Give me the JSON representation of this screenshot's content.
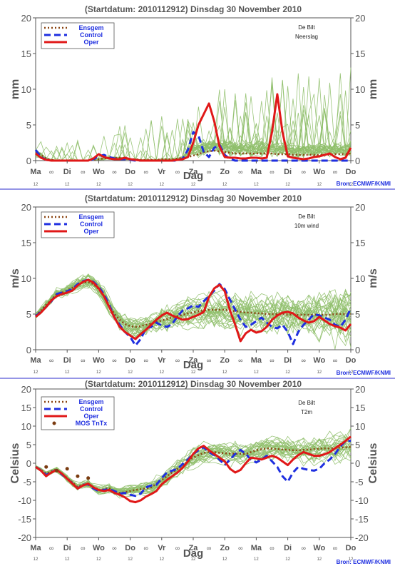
{
  "colors": {
    "ensgem": "#8b4513",
    "control": "#1f2fe0",
    "oper": "#e01818",
    "members": "#8fbf6a",
    "mos": "#7a3b10",
    "axis": "#555555",
    "title": "#555555",
    "separator": "#2b2bcc",
    "source": "#1f2fe0"
  },
  "chart_data": [
    {
      "type": "line",
      "title": "(Startdatum: 2010112912)   Dinsdag   30 November  2010",
      "location": "De Bilt",
      "variable": "Neerslag",
      "ylabel": "mm",
      "xlabel": "Dag",
      "ylim": [
        0,
        20
      ],
      "yticks": [
        0,
        5,
        10,
        15,
        20
      ],
      "xlim": [
        0,
        15
      ],
      "day_labels": [
        "Ma",
        "Di",
        "Wo",
        "Do",
        "Vr",
        "Za",
        "Zo",
        "Ma",
        "Di",
        "Wo",
        "Do"
      ],
      "hour_label": "12",
      "midnight_symbol": "∞",
      "legend": [
        "Ensgem",
        "Control",
        "Oper"
      ],
      "source": "Bron: ECMWF/KNMI",
      "x": [
        0,
        0.25,
        0.5,
        0.75,
        1,
        1.25,
        1.5,
        1.75,
        2,
        2.25,
        2.5,
        2.75,
        3,
        3.25,
        3.5,
        3.75,
        4,
        4.25,
        4.5,
        4.75,
        5,
        5.25,
        5.5,
        5.75,
        6,
        6.25,
        6.5,
        6.75,
        7,
        7.25,
        7.5,
        7.75,
        8,
        8.25,
        8.5,
        8.75,
        9,
        9.25,
        9.5,
        9.75,
        10,
        10.25,
        10.5,
        10.75,
        11,
        11.25,
        11.5,
        11.75,
        12,
        12.25,
        12.5,
        12.75,
        13,
        13.25,
        13.5,
        13.75,
        14,
        14.25,
        14.5,
        14.75,
        15
      ],
      "series": [
        {
          "name": "Ensgem",
          "style": "dotted",
          "values": [
            1.2,
            0.8,
            0.3,
            0.1,
            0,
            0,
            0,
            0,
            0,
            0,
            0,
            0.1,
            0.2,
            0.3,
            0.4,
            0.4,
            0.4,
            0.3,
            0.2,
            0.2,
            0.1,
            0.1,
            0.1,
            0.1,
            0.2,
            0.2,
            0.2,
            0.3,
            0.4,
            0.5,
            0.7,
            0.9,
            1.2,
            1.3,
            1.4,
            1.3,
            1.2,
            1.1,
            1,
            1,
            1,
            1,
            1,
            1,
            1,
            1,
            0.9,
            0.9,
            0.9,
            0.8,
            0.8,
            0.8,
            0.8,
            0.8,
            0.8,
            0.8,
            0.8,
            0.9,
            0.9,
            0.9,
            1
          ]
        },
        {
          "name": "Control",
          "style": "dashed",
          "values": [
            1.5,
            0.5,
            0.1,
            0,
            0,
            0,
            0,
            0,
            0,
            0,
            0,
            0.2,
            0.6,
            0.8,
            0.5,
            0.3,
            0.2,
            0.2,
            0.1,
            0,
            0,
            0,
            0,
            0,
            0,
            0,
            0,
            0,
            0.3,
            1.5,
            4,
            3.5,
            1.2,
            0.5,
            1.8,
            2.2,
            0.8,
            0.2,
            0,
            0,
            0,
            0,
            0,
            0,
            0,
            0,
            0,
            0,
            0,
            0,
            0,
            0,
            0,
            0,
            0,
            0,
            0,
            0,
            0,
            0,
            0
          ]
        },
        {
          "name": "Oper",
          "style": "solid",
          "values": [
            1,
            0.4,
            0.1,
            0,
            0,
            0,
            0,
            0,
            0,
            0,
            0,
            0.3,
            0.9,
            0.5,
            0.3,
            0.2,
            0.2,
            0.4,
            0.2,
            0.1,
            0,
            0,
            0,
            0,
            0,
            0,
            0,
            0.1,
            0.2,
            0.5,
            2.5,
            5,
            6.5,
            8,
            5.5,
            2,
            0.5,
            0.4,
            0.4,
            0.3,
            0.3,
            0.4,
            0.4,
            0.3,
            0.4,
            4,
            9.3,
            4,
            0.6,
            0.4,
            0.3,
            0.2,
            0.3,
            0.5,
            0.6,
            0.8,
            1,
            0.5,
            0.2,
            0.4,
            1.8
          ]
        }
      ]
    },
    {
      "type": "line",
      "title": "(Startdatum: 2010112912)   Dinsdag   30 November  2010",
      "location": "De Bilt",
      "variable": "10m wind",
      "ylabel": "m/s",
      "xlabel": "Dag",
      "ylim": [
        0,
        20
      ],
      "yticks": [
        0,
        5,
        10,
        15,
        20
      ],
      "xlim": [
        0,
        15
      ],
      "day_labels": [
        "Ma",
        "Di",
        "Wo",
        "Do",
        "Vr",
        "Za",
        "Zo",
        "Ma",
        "Di",
        "Wo",
        "Do"
      ],
      "hour_label": "12",
      "midnight_symbol": "∞",
      "legend": [
        "Ensgem",
        "Control",
        "Oper"
      ],
      "source": "Bron: ECMWF/KNMI",
      "x": [
        0,
        0.25,
        0.5,
        0.75,
        1,
        1.25,
        1.5,
        1.75,
        2,
        2.25,
        2.5,
        2.75,
        3,
        3.25,
        3.5,
        3.75,
        4,
        4.25,
        4.5,
        4.75,
        5,
        5.25,
        5.5,
        5.75,
        6,
        6.25,
        6.5,
        6.75,
        7,
        7.25,
        7.5,
        7.75,
        8,
        8.25,
        8.5,
        8.75,
        9,
        9.25,
        9.5,
        9.75,
        10,
        10.25,
        10.5,
        10.75,
        11,
        11.25,
        11.5,
        11.75,
        12,
        12.25,
        12.5,
        12.75,
        13,
        13.25,
        13.5,
        13.75,
        14,
        14.25,
        14.5,
        14.75,
        15
      ],
      "series": [
        {
          "name": "Ensgem",
          "style": "dotted",
          "values": [
            4.8,
            5.5,
            6.3,
            7,
            7.8,
            8,
            8.3,
            8.7,
            9.1,
            9.4,
            9.5,
            9.2,
            8.5,
            7.5,
            6.2,
            5,
            4.2,
            3.6,
            3.3,
            3.2,
            3.3,
            3.5,
            3.7,
            3.9,
            4.1,
            4.3,
            4.5,
            4.7,
            4.9,
            5.1,
            5.2,
            5.4,
            5.5,
            5.6,
            5.6,
            5.6,
            5.6,
            5.5,
            5.4,
            5.3,
            5.2,
            5.2,
            5.1,
            5.1,
            5,
            5,
            5,
            5,
            4.9,
            4.9,
            4.9,
            4.9,
            4.9,
            4.9,
            4.9,
            4.9,
            4.9,
            5,
            5,
            5,
            5
          ]
        },
        {
          "name": "Control",
          "style": "dashed",
          "values": [
            4.7,
            5.3,
            6,
            6.8,
            7.8,
            8,
            8.2,
            8.5,
            9.2,
            9.6,
            9.8,
            9.5,
            8.8,
            7.8,
            6.3,
            4.5,
            3.5,
            2.5,
            1.8,
            0.6,
            1.5,
            3,
            3.2,
            3.8,
            3.4,
            3.2,
            3.6,
            4.7,
            5.5,
            5.8,
            6.2,
            6,
            6.8,
            7.5,
            8.3,
            9.2,
            8.5,
            7,
            5.6,
            4.2,
            3.2,
            3.5,
            4,
            4.5,
            3.8,
            3.2,
            3,
            3.5,
            2.5,
            0.8,
            2.5,
            3.5,
            4.2,
            5,
            4.8,
            4.5,
            4.2,
            3.5,
            3.2,
            4.2,
            5.8
          ]
        },
        {
          "name": "Oper",
          "style": "solid",
          "values": [
            4.6,
            5.2,
            6,
            6.9,
            7.5,
            7.8,
            8,
            8.3,
            9,
            9.5,
            9.8,
            9.4,
            8.6,
            7.5,
            6,
            4.5,
            3.2,
            2.5,
            2,
            1.5,
            2.2,
            2.8,
            3.5,
            4.2,
            4.8,
            5.2,
            4.8,
            4.5,
            4.2,
            4.3,
            4.6,
            4.9,
            5.3,
            7.4,
            8.6,
            9.1,
            8.2,
            5.5,
            3.5,
            1.2,
            2.3,
            2.8,
            2.4,
            2.6,
            3.2,
            4.2,
            4.8,
            5.2,
            5.3,
            5.1,
            4.5,
            4.1,
            3.8,
            4,
            4.6,
            4.1,
            3.6,
            3.3,
            3.1,
            2.7,
            3.6
          ]
        }
      ]
    },
    {
      "type": "line",
      "title": "(Startdatum: 2010112912)   Dinsdag   30 November  2010",
      "location": "De Bilt",
      "variable": "T2m",
      "ylabel": "Celsius",
      "xlabel": "Dag",
      "ylim": [
        -20,
        20
      ],
      "yticks": [
        -20,
        -15,
        -10,
        -5,
        0,
        5,
        10,
        15,
        20
      ],
      "xlim": [
        0,
        15
      ],
      "day_labels": [
        "Ma",
        "Di",
        "Wo",
        "Do",
        "Vr",
        "Za",
        "Zo",
        "Ma",
        "Di",
        "Wo",
        "Do"
      ],
      "hour_label": "12",
      "midnight_symbol": "∞",
      "legend": [
        "Ensgem",
        "Control",
        "Oper",
        "MOS TnTx"
      ],
      "source": "Bron: ECMWF/KNMI",
      "x": [
        0,
        0.25,
        0.5,
        0.75,
        1,
        1.25,
        1.5,
        1.75,
        2,
        2.25,
        2.5,
        2.75,
        3,
        3.25,
        3.5,
        3.75,
        4,
        4.25,
        4.5,
        4.75,
        5,
        5.25,
        5.5,
        5.75,
        6,
        6.25,
        6.5,
        6.75,
        7,
        7.25,
        7.5,
        7.75,
        8,
        8.25,
        8.5,
        8.75,
        9,
        9.25,
        9.5,
        9.75,
        10,
        10.25,
        10.5,
        10.75,
        11,
        11.25,
        11.5,
        11.75,
        12,
        12.25,
        12.5,
        12.75,
        13,
        13.25,
        13.5,
        13.75,
        14,
        14.25,
        14.5,
        14.75,
        15
      ],
      "mos_points": [
        [
          0.5,
          -1
        ],
        [
          1,
          -2
        ],
        [
          1.5,
          -1.5
        ],
        [
          2,
          -3.5
        ],
        [
          2.5,
          -4
        ]
      ],
      "series": [
        {
          "name": "Ensgem",
          "style": "dotted",
          "values": [
            -1,
            -1.8,
            -2.8,
            -2.2,
            -1.6,
            -2.8,
            -4,
            -5.2,
            -6.4,
            -5.8,
            -5.6,
            -6.5,
            -7.3,
            -7,
            -6.7,
            -7.5,
            -8,
            -7.8,
            -7.5,
            -7.2,
            -7,
            -6.8,
            -6.5,
            -5.5,
            -4.5,
            -3.5,
            -2.5,
            -1.5,
            -0.5,
            0.5,
            1.5,
            2.2,
            2.8,
            3,
            3,
            2.8,
            2.7,
            2.6,
            2.6,
            2.5,
            2.5,
            3,
            3.5,
            3.8,
            4,
            3.9,
            3.8,
            3.7,
            3.6,
            3.5,
            3.5,
            3.6,
            3.7,
            3.8,
            3.9,
            4,
            4,
            4.1,
            4.2,
            4.3,
            4.4
          ]
        },
        {
          "name": "Control",
          "style": "dashed",
          "values": [
            -1,
            -1.9,
            -3.2,
            -2.4,
            -1.8,
            -3,
            -4.2,
            -5.4,
            -6.8,
            -5.8,
            -5.7,
            -6.8,
            -7.5,
            -7.2,
            -7,
            -7.5,
            -8.2,
            -8,
            -8.5,
            -8.8,
            -8.2,
            -6.5,
            -6,
            -5.8,
            -4,
            -2.5,
            -2,
            -1.5,
            -0.2,
            1,
            2.5,
            3.5,
            4.3,
            3,
            2.2,
            1,
            -0.5,
            1,
            2.5,
            3.6,
            2.5,
            1,
            0.2,
            1,
            2,
            0.5,
            -1,
            -3.5,
            -5,
            -2.5,
            -1,
            -1.5,
            -1.8,
            -2,
            -1.5,
            0,
            1,
            2.5,
            4.5,
            6,
            6
          ]
        },
        {
          "name": "Oper",
          "style": "solid",
          "values": [
            -1,
            -2,
            -3.5,
            -2.5,
            -1.8,
            -2.8,
            -4.2,
            -5.5,
            -6.8,
            -6,
            -5.5,
            -6.5,
            -7.2,
            -7.5,
            -7.2,
            -8,
            -8.5,
            -9.2,
            -10.2,
            -10.5,
            -10,
            -9,
            -8.3,
            -7.5,
            -5.7,
            -4.5,
            -3.5,
            -2.5,
            -1.2,
            0.5,
            2.5,
            4,
            4.7,
            3.5,
            2.5,
            1.5,
            0.5,
            -1.5,
            -2.5,
            -1.8,
            0,
            1.5,
            1.3,
            1,
            1.5,
            2,
            1.5,
            0.5,
            -0.5,
            1,
            2.2,
            3,
            2.5,
            2,
            2,
            2.4,
            3,
            4,
            5,
            6,
            7.2
          ]
        }
      ]
    }
  ]
}
